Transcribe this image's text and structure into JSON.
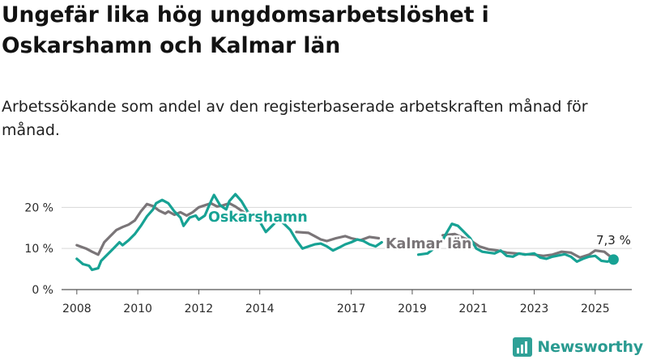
{
  "header": {
    "title": "Ungefär lika hög ungdomsarbetslöshet i Oskarshamn och Kalmar län",
    "subtitle": "Arbetssökande som andel av den registerbaserade arbetskraften månad för månad."
  },
  "brand": {
    "name": "Newsworthy",
    "icon": "newsworthy-logo-icon",
    "color": "#2a9b91"
  },
  "chart_data": {
    "type": "line",
    "ylim": [
      0,
      24
    ],
    "xlim": [
      2007.5,
      2026.2
    ],
    "y_ticks": [
      0,
      10,
      20
    ],
    "y_tick_labels": [
      "0 %",
      "10 %",
      "20 %"
    ],
    "x_ticks": [
      2008,
      2010,
      2012,
      2014,
      2017,
      2019,
      2021,
      2023,
      2025
    ],
    "x_tick_labels": [
      "2008",
      "2010",
      "2012",
      "2014",
      "2017",
      "2019",
      "2021",
      "2023",
      "2025"
    ],
    "grid": true,
    "end_annotation": "7,3 %",
    "series": [
      {
        "name": "Kalmar län",
        "color": "#7a7578",
        "points": [
          [
            2008.0,
            10.8
          ],
          [
            2008.3,
            10.0
          ],
          [
            2008.5,
            9.2
          ],
          [
            2008.7,
            8.5
          ],
          [
            2008.9,
            11.5
          ],
          [
            2009.1,
            13.0
          ],
          [
            2009.3,
            14.5
          ],
          [
            2009.5,
            15.2
          ],
          [
            2009.7,
            15.8
          ],
          [
            2009.9,
            16.8
          ],
          [
            2010.1,
            19.0
          ],
          [
            2010.3,
            20.8
          ],
          [
            2010.5,
            20.3
          ],
          [
            2010.7,
            19.2
          ],
          [
            2010.9,
            18.5
          ],
          [
            2011.0,
            19.0
          ],
          [
            2011.2,
            18.2
          ],
          [
            2011.4,
            18.8
          ],
          [
            2011.6,
            18.0
          ],
          [
            2011.8,
            18.8
          ],
          [
            2012.0,
            20.0
          ],
          [
            2012.2,
            20.5
          ],
          [
            2012.4,
            21.0
          ],
          [
            2012.6,
            20.2
          ],
          [
            2012.8,
            20.5
          ],
          [
            2013.0,
            21.0
          ],
          [
            2013.2,
            20.2
          ],
          [
            2013.4,
            19.2
          ],
          [
            2013.6,
            18.2
          ],
          [
            2013.8,
            18.6
          ],
          [
            2014.0,
            18.5
          ],
          [
            2015.2,
            14.0
          ],
          [
            2015.6,
            13.8
          ],
          [
            2015.8,
            13.0
          ],
          [
            2016.0,
            12.2
          ],
          [
            2016.2,
            11.8
          ],
          [
            2016.5,
            12.5
          ],
          [
            2016.8,
            13.0
          ],
          [
            2017.0,
            12.5
          ],
          [
            2017.3,
            12.0
          ],
          [
            2017.6,
            12.8
          ],
          [
            2017.9,
            12.5
          ],
          [
            2020.0,
            13.2
          ],
          [
            2020.4,
            13.5
          ],
          [
            2020.7,
            12.5
          ],
          [
            2020.9,
            12.0
          ],
          [
            2021.2,
            10.5
          ],
          [
            2021.5,
            9.8
          ],
          [
            2021.8,
            9.5
          ],
          [
            2022.1,
            9.0
          ],
          [
            2022.4,
            8.8
          ],
          [
            2022.7,
            8.6
          ],
          [
            2023.0,
            8.5
          ],
          [
            2023.3,
            8.2
          ],
          [
            2023.6,
            8.5
          ],
          [
            2023.9,
            9.2
          ],
          [
            2024.2,
            9.0
          ],
          [
            2024.5,
            7.8
          ],
          [
            2024.8,
            8.5
          ],
          [
            2025.0,
            9.5
          ],
          [
            2025.3,
            9.2
          ],
          [
            2025.5,
            8.0
          ],
          [
            2025.6,
            7.3
          ]
        ]
      },
      {
        "name": "Oskarshamn",
        "color": "#17a294",
        "points": [
          [
            2008.0,
            7.5
          ],
          [
            2008.2,
            6.2
          ],
          [
            2008.4,
            5.8
          ],
          [
            2008.5,
            4.8
          ],
          [
            2008.7,
            5.2
          ],
          [
            2008.8,
            7.0
          ],
          [
            2009.0,
            8.5
          ],
          [
            2009.2,
            10.0
          ],
          [
            2009.4,
            11.5
          ],
          [
            2009.5,
            10.8
          ],
          [
            2009.7,
            12.0
          ],
          [
            2009.9,
            13.5
          ],
          [
            2010.1,
            15.5
          ],
          [
            2010.3,
            17.8
          ],
          [
            2010.5,
            19.5
          ],
          [
            2010.6,
            21.0
          ],
          [
            2010.8,
            21.8
          ],
          [
            2011.0,
            21.0
          ],
          [
            2011.2,
            19.0
          ],
          [
            2011.4,
            17.5
          ],
          [
            2011.5,
            15.5
          ],
          [
            2011.7,
            17.5
          ],
          [
            2011.9,
            18.0
          ],
          [
            2012.0,
            17.0
          ],
          [
            2012.2,
            18.0
          ],
          [
            2012.4,
            21.5
          ],
          [
            2012.5,
            23.0
          ],
          [
            2012.7,
            20.5
          ],
          [
            2012.9,
            19.5
          ],
          [
            2013.0,
            21.5
          ],
          [
            2013.2,
            23.2
          ],
          [
            2013.4,
            21.5
          ],
          [
            2013.6,
            19.0
          ],
          [
            2013.8,
            17.5
          ],
          [
            2014.0,
            16.5
          ],
          [
            2014.2,
            14.0
          ],
          [
            2014.4,
            15.5
          ],
          [
            2014.6,
            17.0
          ],
          [
            2014.8,
            16.0
          ],
          [
            2015.0,
            14.5
          ],
          [
            2015.2,
            12.0
          ],
          [
            2015.4,
            10.0
          ],
          [
            2015.6,
            10.5
          ],
          [
            2015.8,
            11.0
          ],
          [
            2016.0,
            11.2
          ],
          [
            2016.2,
            10.5
          ],
          [
            2016.4,
            9.5
          ],
          [
            2016.6,
            10.2
          ],
          [
            2016.8,
            11.0
          ],
          [
            2017.0,
            11.5
          ],
          [
            2017.2,
            12.2
          ],
          [
            2017.4,
            11.8
          ],
          [
            2017.6,
            11.0
          ],
          [
            2017.8,
            10.5
          ],
          [
            2018.0,
            11.5
          ],
          [
            2019.2,
            8.5
          ],
          [
            2019.5,
            8.8
          ],
          [
            2019.8,
            10.5
          ],
          [
            2020.0,
            12.0
          ],
          [
            2020.1,
            13.5
          ],
          [
            2020.3,
            16.0
          ],
          [
            2020.5,
            15.5
          ],
          [
            2020.7,
            14.0
          ],
          [
            2020.9,
            12.5
          ],
          [
            2021.1,
            10.0
          ],
          [
            2021.3,
            9.2
          ],
          [
            2021.5,
            9.0
          ],
          [
            2021.7,
            8.8
          ],
          [
            2021.9,
            9.5
          ],
          [
            2022.1,
            8.2
          ],
          [
            2022.3,
            8.0
          ],
          [
            2022.5,
            8.8
          ],
          [
            2022.7,
            8.5
          ],
          [
            2023.0,
            8.8
          ],
          [
            2023.2,
            7.8
          ],
          [
            2023.4,
            7.5
          ],
          [
            2023.6,
            8.0
          ],
          [
            2023.8,
            8.3
          ],
          [
            2024.0,
            8.6
          ],
          [
            2024.2,
            8.0
          ],
          [
            2024.4,
            6.8
          ],
          [
            2024.6,
            7.5
          ],
          [
            2024.8,
            8.0
          ],
          [
            2025.0,
            8.2
          ],
          [
            2025.2,
            7.0
          ],
          [
            2025.4,
            6.8
          ],
          [
            2025.6,
            7.3
          ]
        ]
      }
    ]
  }
}
